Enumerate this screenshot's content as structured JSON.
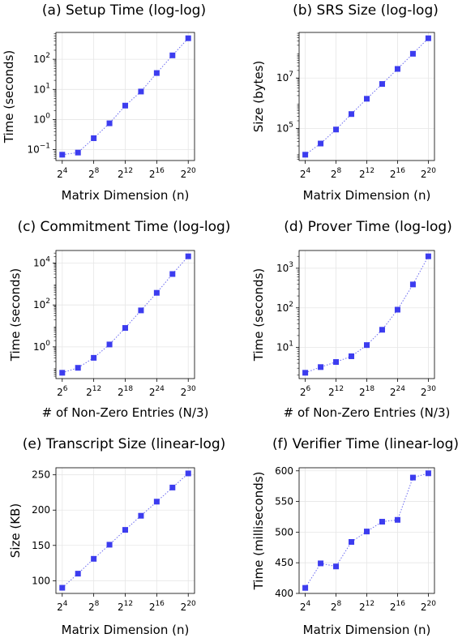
{
  "chart_data": [
    {
      "type": "scatter",
      "title": "(a) Setup Time (log-log)",
      "xlabel": "Matrix Dimension (n)",
      "ylabel": "Time (seconds)",
      "xscale": "log2",
      "yscale": "log10",
      "grid": true,
      "x_ticks": [
        {
          "base": "2",
          "exp": "4",
          "value": 4
        },
        {
          "base": "2",
          "exp": "8",
          "value": 8
        },
        {
          "base": "2",
          "exp": "12",
          "value": 12
        },
        {
          "base": "2",
          "exp": "16",
          "value": 16
        },
        {
          "base": "2",
          "exp": "20",
          "value": 20
        }
      ],
      "y_ticks": [
        {
          "base": "10",
          "exp": "−1",
          "value": -1
        },
        {
          "base": "10",
          "exp": "0",
          "value": 0
        },
        {
          "base": "10",
          "exp": "1",
          "value": 1
        },
        {
          "base": "10",
          "exp": "2",
          "value": 2
        }
      ],
      "series": [
        {
          "x": [
            "2^4",
            "2^6",
            "2^8",
            "2^10",
            "2^12",
            "2^14",
            "2^16",
            "2^18",
            "2^20"
          ],
          "y": [
            0.068,
            0.08,
            0.24,
            0.75,
            2.9,
            8.5,
            35,
            135,
            500
          ]
        }
      ]
    },
    {
      "type": "scatter",
      "title": "(b) SRS Size (log-log)",
      "xlabel": "Matrix Dimension (n)",
      "ylabel": "Size (bytes)",
      "xscale": "log2",
      "yscale": "log10",
      "grid": true,
      "x_ticks": [
        {
          "base": "2",
          "exp": "4",
          "value": 4
        },
        {
          "base": "2",
          "exp": "8",
          "value": 8
        },
        {
          "base": "2",
          "exp": "12",
          "value": 12
        },
        {
          "base": "2",
          "exp": "16",
          "value": 16
        },
        {
          "base": "2",
          "exp": "20",
          "value": 20
        }
      ],
      "y_ticks": [
        {
          "base": "10",
          "exp": "5",
          "value": 5
        },
        {
          "base": "10",
          "exp": "7",
          "value": 7
        }
      ],
      "series": [
        {
          "x": [
            "2^4",
            "2^6",
            "2^8",
            "2^10",
            "2^12",
            "2^14",
            "2^16",
            "2^18",
            "2^20"
          ],
          "y": [
            9000,
            25000,
            90000,
            370000,
            1500000,
            5800000,
            23000000,
            92000000,
            380000000
          ]
        }
      ]
    },
    {
      "type": "scatter",
      "title": "(c) Commitment Time (log-log)",
      "xlabel": "# of Non-Zero Entries (N/3)",
      "ylabel": "Time (seconds)",
      "xscale": "log2",
      "yscale": "log10",
      "grid": true,
      "x_ticks": [
        {
          "base": "2",
          "exp": "6",
          "value": 6
        },
        {
          "base": "2",
          "exp": "12",
          "value": 12
        },
        {
          "base": "2",
          "exp": "18",
          "value": 18
        },
        {
          "base": "2",
          "exp": "24",
          "value": 24
        },
        {
          "base": "2",
          "exp": "30",
          "value": 30
        }
      ],
      "y_ticks": [
        {
          "base": "10",
          "exp": "0",
          "value": 0
        },
        {
          "base": "10",
          "exp": "2",
          "value": 2
        },
        {
          "base": "10",
          "exp": "4",
          "value": 4
        }
      ],
      "series": [
        {
          "x": [
            "2^6",
            "2^9",
            "2^12",
            "2^15",
            "2^18",
            "2^21",
            "2^24",
            "2^27",
            "2^30"
          ],
          "y": [
            0.058,
            0.1,
            0.3,
            1.3,
            8,
            55,
            380,
            3000,
            21000
          ]
        }
      ]
    },
    {
      "type": "scatter",
      "title": "(d) Prover Time (log-log)",
      "xlabel": "# of Non-Zero Entries (N/3)",
      "ylabel": "Time (seconds)",
      "xscale": "log2",
      "yscale": "log10",
      "grid": true,
      "x_ticks": [
        {
          "base": "2",
          "exp": "6",
          "value": 6
        },
        {
          "base": "2",
          "exp": "12",
          "value": 12
        },
        {
          "base": "2",
          "exp": "18",
          "value": 18
        },
        {
          "base": "2",
          "exp": "24",
          "value": 24
        },
        {
          "base": "2",
          "exp": "30",
          "value": 30
        }
      ],
      "y_ticks": [
        {
          "base": "10",
          "exp": "1",
          "value": 1
        },
        {
          "base": "10",
          "exp": "2",
          "value": 2
        },
        {
          "base": "10",
          "exp": "3",
          "value": 3
        }
      ],
      "series": [
        {
          "x": [
            "2^6",
            "2^9",
            "2^12",
            "2^15",
            "2^18",
            "2^21",
            "2^24",
            "2^27",
            "2^30"
          ],
          "y": [
            2.3,
            3.2,
            4.3,
            6,
            11.5,
            28,
            90,
            390,
            2000
          ]
        }
      ]
    },
    {
      "type": "scatter",
      "title": "(e) Transcript Size (linear-log)",
      "xlabel": "Matrix Dimension (n)",
      "ylabel": "Size (KB)",
      "xscale": "log2",
      "yscale": "linear",
      "ylim": [
        82,
        260
      ],
      "grid": true,
      "x_ticks": [
        {
          "base": "2",
          "exp": "4",
          "value": 4
        },
        {
          "base": "2",
          "exp": "8",
          "value": 8
        },
        {
          "base": "2",
          "exp": "12",
          "value": 12
        },
        {
          "base": "2",
          "exp": "16",
          "value": 16
        },
        {
          "base": "2",
          "exp": "20",
          "value": 20
        }
      ],
      "y_ticks": [
        {
          "label": "100",
          "value": 100
        },
        {
          "label": "150",
          "value": 150
        },
        {
          "label": "200",
          "value": 200
        },
        {
          "label": "250",
          "value": 250
        }
      ],
      "series": [
        {
          "x": [
            "2^4",
            "2^6",
            "2^8",
            "2^10",
            "2^12",
            "2^14",
            "2^16",
            "2^18",
            "2^20"
          ],
          "y": [
            90,
            110,
            131,
            151,
            172,
            192,
            212,
            232,
            252
          ]
        }
      ]
    },
    {
      "type": "scatter",
      "title": "(f) Verifier Time (linear-log)",
      "xlabel": "Matrix Dimension (n)",
      "ylabel": "Time (milliseconds)",
      "xscale": "log2",
      "yscale": "linear",
      "ylim": [
        400,
        605
      ],
      "grid": true,
      "x_ticks": [
        {
          "base": "2",
          "exp": "4",
          "value": 4
        },
        {
          "base": "2",
          "exp": "8",
          "value": 8
        },
        {
          "base": "2",
          "exp": "12",
          "value": 12
        },
        {
          "base": "2",
          "exp": "16",
          "value": 16
        },
        {
          "base": "2",
          "exp": "20",
          "value": 20
        }
      ],
      "y_ticks": [
        {
          "label": "400",
          "value": 400
        },
        {
          "label": "450",
          "value": 450
        },
        {
          "label": "500",
          "value": 500
        },
        {
          "label": "550",
          "value": 550
        },
        {
          "label": "600",
          "value": 600
        }
      ],
      "series": [
        {
          "x": [
            "2^4",
            "2^6",
            "2^8",
            "2^10",
            "2^12",
            "2^14",
            "2^16",
            "2^18",
            "2^20"
          ],
          "y": [
            409,
            449,
            444,
            484,
            501,
            517,
            520,
            589,
            596
          ]
        }
      ]
    }
  ],
  "colors": {
    "marker": "#3333ee",
    "line": "#6a6af0",
    "grid": "#e6e6e6"
  }
}
